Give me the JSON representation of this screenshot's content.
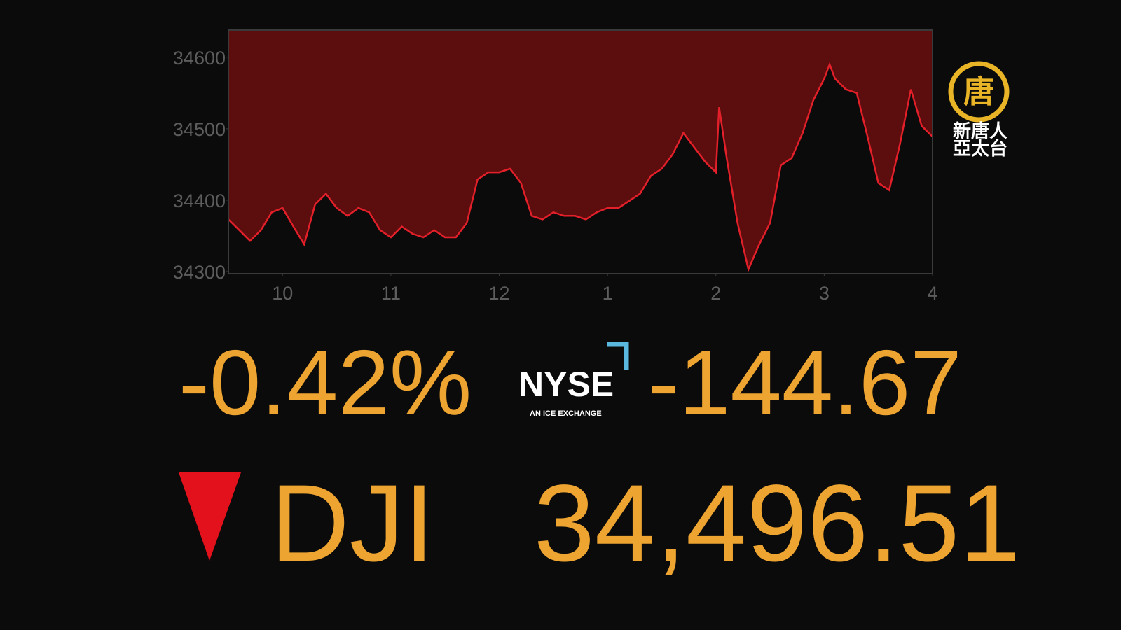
{
  "chart_data": {
    "type": "area",
    "x": [
      9.5,
      9.6,
      9.7,
      9.8,
      9.9,
      10.0,
      10.1,
      10.2,
      10.3,
      10.4,
      10.5,
      10.6,
      10.7,
      10.8,
      10.9,
      11.0,
      11.1,
      11.2,
      11.3,
      11.4,
      11.5,
      11.6,
      11.7,
      11.8,
      11.9,
      12.0,
      12.1,
      12.2,
      12.3,
      12.4,
      12.5,
      12.6,
      12.7,
      12.8,
      12.9,
      13.0,
      13.1,
      13.2,
      13.3,
      13.4,
      13.5,
      13.6,
      13.7,
      13.8,
      13.9,
      14.0,
      14.03,
      14.1,
      14.2,
      14.3,
      14.4,
      14.5,
      14.6,
      14.7,
      14.8,
      14.9,
      15.0,
      15.05,
      15.1,
      15.2,
      15.3,
      15.4,
      15.5,
      15.6,
      15.7,
      15.8,
      15.9,
      16.0
    ],
    "series": [
      {
        "color": "#e3202a",
        "fill": "#5c0d0e",
        "values": [
          34373,
          34358,
          34343,
          34358,
          34383,
          34389,
          34363,
          34338,
          34394,
          34409,
          34389,
          34378,
          34389,
          34383,
          34358,
          34348,
          34363,
          34353,
          34348,
          34358,
          34348,
          34348,
          34368,
          34429,
          34439,
          34439,
          34444,
          34424,
          34378,
          34373,
          34383,
          34378,
          34378,
          34373,
          34383,
          34389,
          34389,
          34399,
          34409,
          34434,
          34444,
          34464,
          34494,
          34474,
          34454,
          34439,
          34530,
          34459,
          34368,
          34303,
          34338,
          34368,
          34449,
          34459,
          34494,
          34540,
          34570,
          34590,
          34570,
          34555,
          34550,
          34489,
          34424,
          34414,
          34479,
          34555,
          34504,
          34489
        ]
      }
    ],
    "xlim": [
      9.5,
      16
    ],
    "xticks": [
      10,
      11,
      12,
      {
        "value": 13,
        "label": "1"
      },
      {
        "value": 14,
        "label": "2"
      },
      {
        "value": 15,
        "label": "3"
      },
      {
        "value": 16,
        "label": "4"
      }
    ],
    "ylim": [
      34297,
      34638
    ],
    "yticks": [
      34300,
      34400,
      34500,
      34600
    ]
  },
  "quote": {
    "percent_change": "-0.42%",
    "point_change": "-144.67",
    "symbol": "DJI",
    "price": "34,496.51"
  },
  "exchange": {
    "name": "NYSE",
    "tagline": "AN ICE EXCHANGE"
  },
  "logo": {
    "mark": "唐",
    "line1": "新唐人",
    "line2": "亞太台"
  }
}
